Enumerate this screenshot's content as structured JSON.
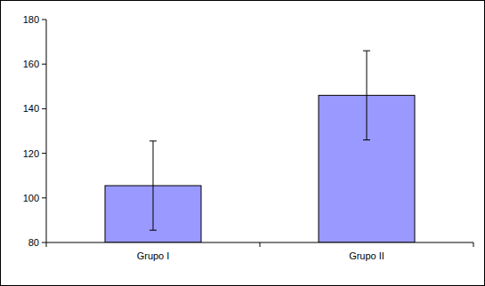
{
  "chart_data": {
    "type": "bar",
    "categories": [
      "Grupo I",
      "Grupo II"
    ],
    "values": [
      105.5,
      146
    ],
    "errors": [
      20,
      20
    ],
    "color": "#9999ff",
    "ylim": [
      80,
      180
    ],
    "yticks": [
      80,
      100,
      120,
      140,
      160,
      180
    ],
    "grid": false
  }
}
